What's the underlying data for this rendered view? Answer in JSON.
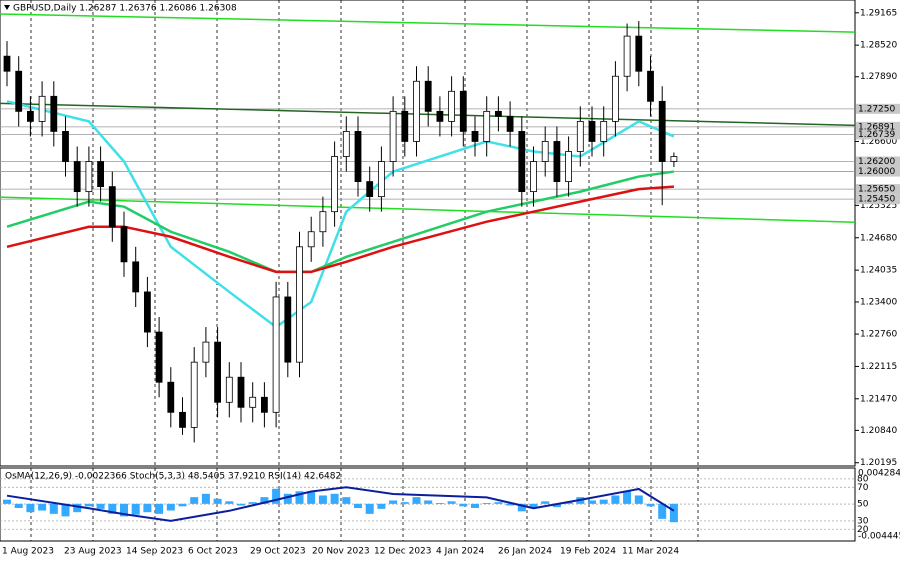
{
  "chart_data": {
    "type": "candlestick",
    "header": "GBPUSD,Daily 1.26287 1.26376 1.26086 1.26308",
    "indicators": "OsMA(12,26,9) -0.0022366 Stoch(5,3,3) 48.5405 37.9210 RSI(14) 42.6482",
    "x_labels": [
      "1 Aug 2023",
      "23 Aug 2023",
      "14 Sep 2023",
      "6 Oct 2023",
      "29 Oct 2023",
      "20 Nov 2023",
      "12 Dec 2023",
      "4 Jan 2024",
      "26 Jan 2024",
      "19 Feb 2024",
      "11 Mar 2024"
    ],
    "ylim": [
      1.2013,
      1.2942
    ],
    "yticks": [
      {
        "value": 1.29165,
        "label": "1.29165"
      },
      {
        "value": 1.2852,
        "label": "1.28520"
      },
      {
        "value": 1.2789,
        "label": "1.27890"
      },
      {
        "value": 1.266,
        "label": "1.26600"
      },
      {
        "value": 1.25325,
        "label": "1.25325"
      },
      {
        "value": 1.2468,
        "label": "1.24680"
      },
      {
        "value": 1.24035,
        "label": "1.24035"
      },
      {
        "value": 1.234,
        "label": "1.23400"
      },
      {
        "value": 1.2276,
        "label": "1.22760"
      },
      {
        "value": 1.22115,
        "label": "1.22115"
      },
      {
        "value": 1.2147,
        "label": "1.21470"
      },
      {
        "value": 1.2084,
        "label": "1.20840"
      },
      {
        "value": 1.20195,
        "label": "1.20195"
      }
    ],
    "levels": [
      {
        "value": 1.2725,
        "label": "1.27250"
      },
      {
        "value": 1.26891,
        "label": "1.26891"
      },
      {
        "value": 1.26739,
        "label": "1.26739"
      },
      {
        "value": 1.262,
        "label": "1.26200"
      },
      {
        "value": 1.26,
        "label": "1.26000"
      },
      {
        "value": 1.2565,
        "label": "1.25650"
      },
      {
        "value": 1.2545,
        "label": "1.25450"
      }
    ],
    "open": [
      1.283,
      1.28,
      1.272,
      1.27,
      1.275,
      1.268,
      1.262,
      1.256,
      1.262,
      1.257,
      1.249,
      1.242,
      1.236,
      1.228,
      1.218,
      1.212,
      1.209,
      1.222,
      1.226,
      1.214,
      1.219,
      1.213,
      1.215,
      1.212,
      1.235,
      1.222,
      1.245,
      1.248,
      1.252,
      1.263,
      1.268,
      1.258,
      1.255,
      1.262,
      1.272,
      1.266,
      1.278,
      1.272,
      1.27,
      1.276,
      1.268,
      1.266,
      1.272,
      1.271,
      1.268,
      1.256,
      1.262,
      1.266,
      1.258,
      1.264,
      1.27,
      1.266,
      1.27,
      1.279,
      1.287,
      1.28,
      1.274,
      1.262
    ],
    "high": [
      1.286,
      1.283,
      1.275,
      1.278,
      1.278,
      1.271,
      1.265,
      1.265,
      1.265,
      1.26,
      1.252,
      1.245,
      1.239,
      1.231,
      1.221,
      1.215,
      1.225,
      1.229,
      1.229,
      1.222,
      1.222,
      1.218,
      1.218,
      1.238,
      1.238,
      1.248,
      1.251,
      1.255,
      1.266,
      1.271,
      1.271,
      1.261,
      1.265,
      1.275,
      1.275,
      1.281,
      1.281,
      1.275,
      1.279,
      1.279,
      1.271,
      1.275,
      1.275,
      1.274,
      1.271,
      1.265,
      1.269,
      1.269,
      1.267,
      1.273,
      1.273,
      1.273,
      1.282,
      1.2895,
      1.29,
      1.283,
      1.277,
      1.2638
    ],
    "low": [
      1.277,
      1.269,
      1.267,
      1.267,
      1.265,
      1.259,
      1.253,
      1.253,
      1.254,
      1.246,
      1.239,
      1.233,
      1.225,
      1.215,
      1.209,
      1.2075,
      1.206,
      1.219,
      1.211,
      1.211,
      1.21,
      1.21,
      1.209,
      1.209,
      1.219,
      1.219,
      1.242,
      1.245,
      1.249,
      1.26,
      1.255,
      1.252,
      1.252,
      1.259,
      1.263,
      1.263,
      1.269,
      1.267,
      1.267,
      1.265,
      1.263,
      1.263,
      1.268,
      1.265,
      1.253,
      1.253,
      1.259,
      1.255,
      1.255,
      1.261,
      1.263,
      1.263,
      1.267,
      1.276,
      1.277,
      1.271,
      1.2533,
      1.2609
    ],
    "close": [
      1.28,
      1.272,
      1.27,
      1.275,
      1.268,
      1.262,
      1.256,
      1.262,
      1.257,
      1.249,
      1.242,
      1.236,
      1.228,
      1.218,
      1.212,
      1.209,
      1.222,
      1.226,
      1.214,
      1.219,
      1.213,
      1.215,
      1.212,
      1.235,
      1.222,
      1.245,
      1.248,
      1.252,
      1.263,
      1.268,
      1.258,
      1.255,
      1.262,
      1.272,
      1.266,
      1.278,
      1.272,
      1.27,
      1.276,
      1.268,
      1.266,
      1.272,
      1.271,
      1.268,
      1.256,
      1.262,
      1.266,
      1.258,
      1.264,
      1.27,
      1.266,
      1.27,
      1.279,
      1.287,
      1.28,
      1.274,
      1.262,
      1.263
    ],
    "ma_x": [
      0,
      7,
      10,
      14,
      19,
      23,
      26,
      29,
      33,
      41,
      45,
      49,
      54,
      57
    ],
    "series": [
      {
        "color": "#40e0e8",
        "values": [
          1.274,
          1.27,
          1.262,
          1.245,
          1.236,
          1.229,
          1.234,
          1.252,
          1.26,
          1.266,
          1.264,
          1.263,
          1.27,
          1.267
        ]
      },
      {
        "color": "#22cc66",
        "values": [
          1.249,
          1.254,
          1.253,
          1.248,
          1.244,
          1.24,
          1.24,
          1.243,
          1.246,
          1.252,
          1.254,
          1.256,
          1.259,
          1.26
        ]
      },
      {
        "color": "#dd1111",
        "values": [
          1.245,
          1.249,
          1.249,
          1.247,
          1.243,
          1.24,
          1.24,
          1.242,
          1.245,
          1.25,
          1.252,
          1.254,
          1.2565,
          1.257
        ]
      }
    ],
    "trendlines": [
      {
        "color": "#22dd22",
        "start": 1.2914,
        "end": 1.2878
      },
      {
        "color": "#22dd22",
        "start": 1.2549,
        "end": 1.2499
      },
      {
        "color": "#226622",
        "start": 1.2736,
        "end": 1.2692
      }
    ],
    "osma_lim": [
      -0.004445,
      0.0042848
    ],
    "osma_ticks": [
      {
        "value": 0.0042848,
        "label": "0.0042848"
      },
      {
        "value": -0.004445,
        "label": "-0.004445"
      }
    ],
    "osma": [
      0.0005,
      -0.0005,
      -0.001,
      -0.0008,
      -0.0012,
      -0.0015,
      -0.001,
      -0.0003,
      -0.0006,
      -0.0012,
      -0.0015,
      -0.0013,
      -0.001,
      -0.0012,
      -0.0008,
      -0.0003,
      0.0008,
      0.0012,
      0.0006,
      0.0003,
      -0.0002,
      0.0002,
      0.0008,
      0.0018,
      0.0012,
      0.0015,
      0.0014,
      0.001,
      0.0012,
      0.0008,
      -0.0005,
      -0.0012,
      -0.0006,
      0.0004,
      0.0002,
      0.0008,
      0.0004,
      0.0001,
      0.0003,
      -0.0003,
      -0.0005,
      0.0001,
      0.0002,
      -0.0002,
      -0.0009,
      -0.0004,
      0.0003,
      -0.0004,
      0.0002,
      0.0008,
      0.0004,
      0.0005,
      0.001,
      0.0015,
      0.001,
      -0.0003,
      -0.0018,
      -0.0022
    ],
    "osc_lim": [
      6,
      93
    ],
    "osc_ticks": [
      80,
      70,
      50,
      30,
      20
    ],
    "rsi": [
      60,
      45,
      38,
      30,
      42,
      55,
      65,
      70,
      62,
      58,
      45,
      55,
      68,
      42
    ]
  }
}
